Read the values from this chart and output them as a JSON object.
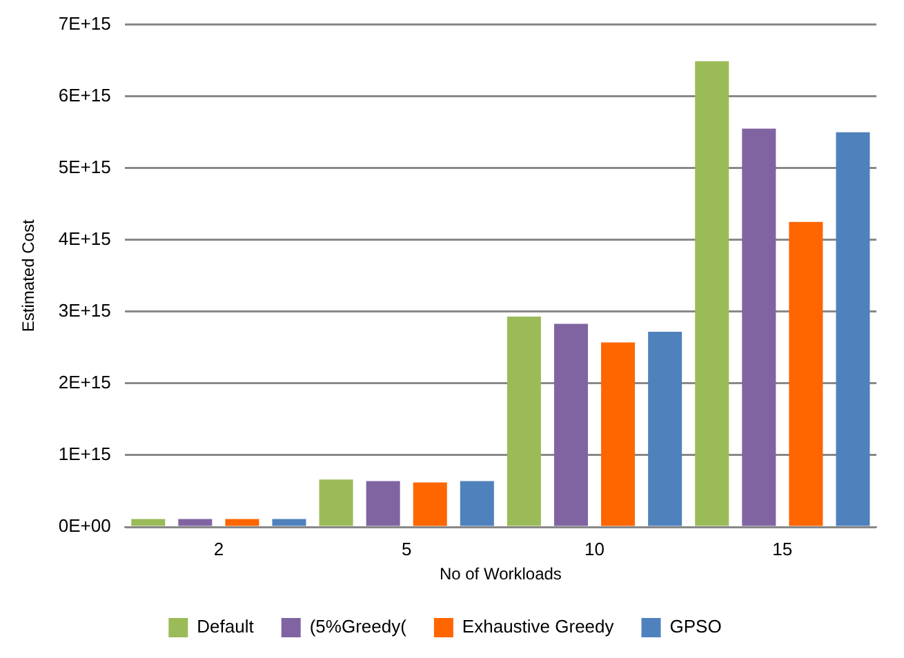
{
  "chart_data": {
    "type": "bar",
    "xlabel": "No of Workloads",
    "ylabel": "Estimated Cost",
    "categories": [
      "2",
      "5",
      "10",
      "15"
    ],
    "series": [
      {
        "name": "Default",
        "color": "#9bbb59",
        "values": [
          110000000000000.0,
          660000000000000.0,
          2930000000000000.0,
          6490000000000000.0
        ]
      },
      {
        "name": "(5%Greedy(",
        "color": "#8064a2",
        "values": [
          110000000000000.0,
          640000000000000.0,
          2830000000000000.0,
          5550000000000000.0
        ]
      },
      {
        "name": "Exhaustive Greedy",
        "color": "#ff6600",
        "values": [
          110000000000000.0,
          620000000000000.0,
          2570000000000000.0,
          4250000000000000.0
        ]
      },
      {
        "name": "GPSO",
        "color": "#4f81bd",
        "values": [
          110000000000000.0,
          640000000000000.0,
          2720000000000000.0,
          5500000000000000.0
        ]
      }
    ],
    "ylim": [
      0,
      7000000000000000.0
    ],
    "yticks": [
      {
        "value": 0,
        "label": "0E+00"
      },
      {
        "value": 1000000000000000.0,
        "label": "1E+15"
      },
      {
        "value": 2000000000000000.0,
        "label": "2E+15"
      },
      {
        "value": 3000000000000000.0,
        "label": "3E+15"
      },
      {
        "value": 4000000000000000.0,
        "label": "4E+15"
      },
      {
        "value": 5000000000000000.0,
        "label": "5E+15"
      },
      {
        "value": 6000000000000000.0,
        "label": "6E+15"
      },
      {
        "value": 7000000000000000.0,
        "label": "7E+15"
      }
    ],
    "grid": "y",
    "legend": "bottom"
  }
}
